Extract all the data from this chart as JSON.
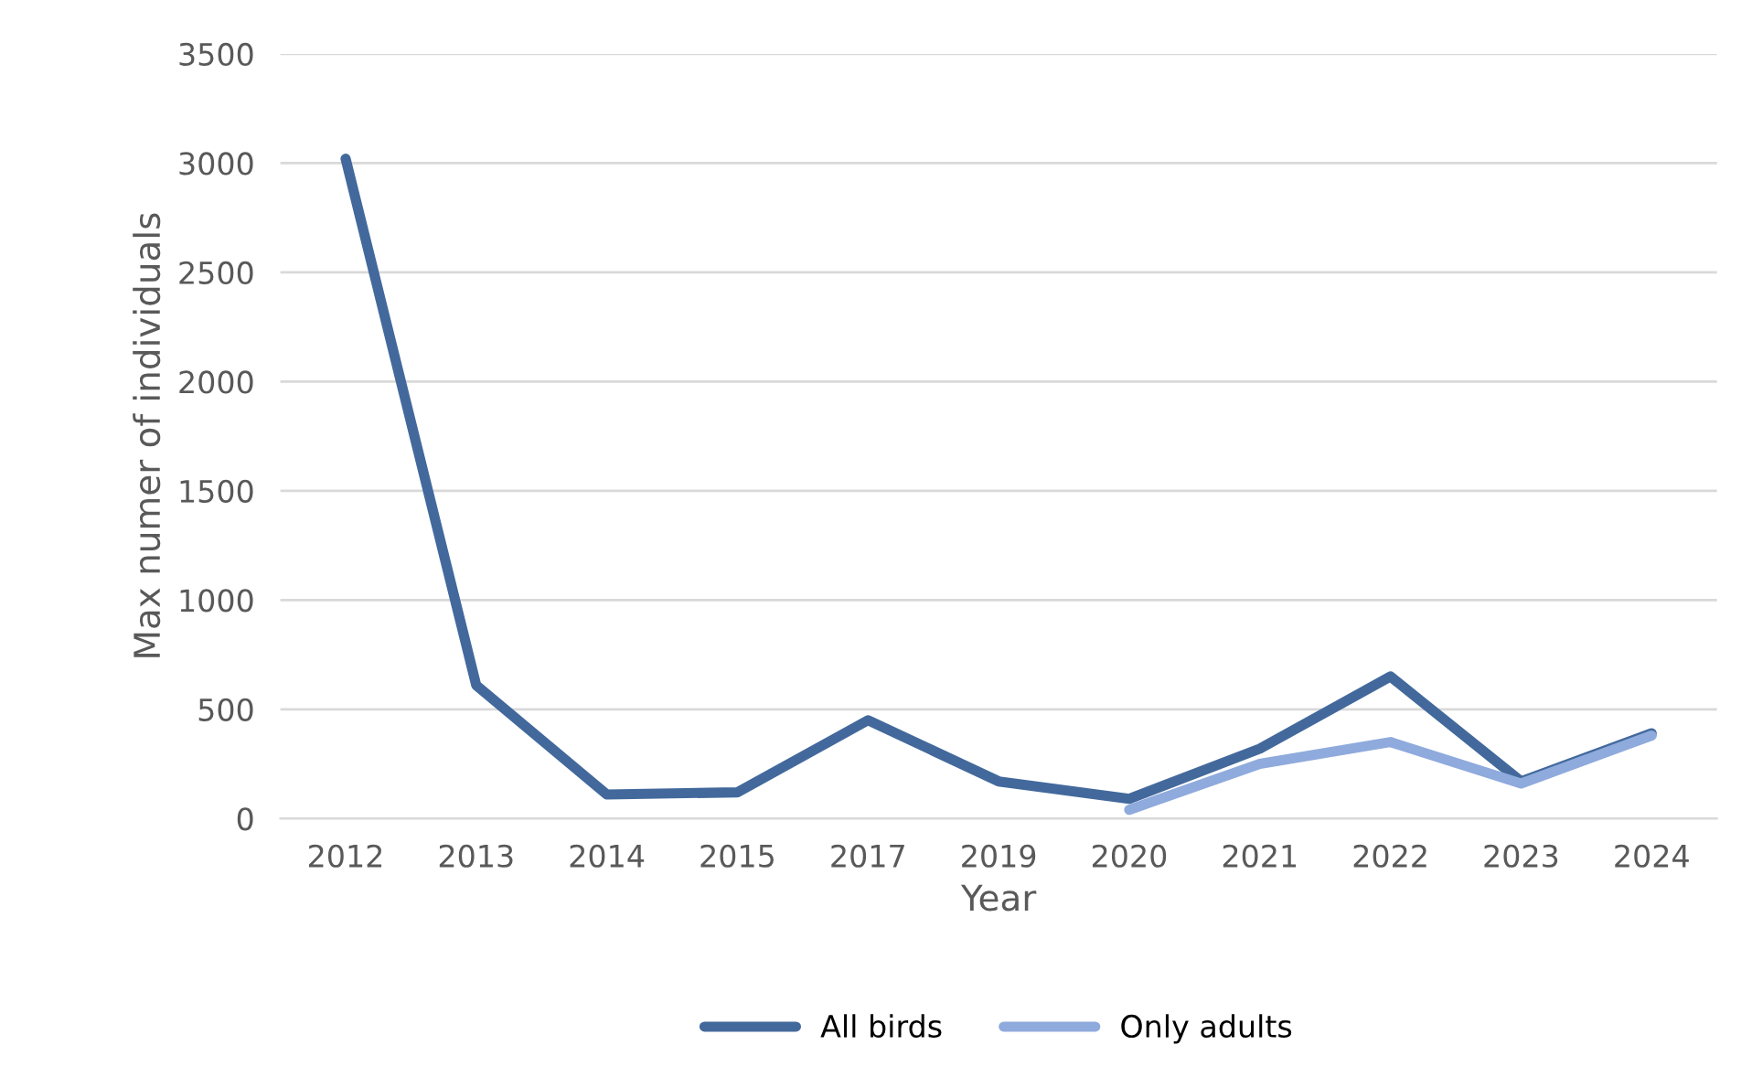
{
  "chart_data": {
    "type": "line",
    "xlabel": "Year",
    "ylabel": "Max numer of individuals",
    "categories": [
      "2012",
      "2013",
      "2014",
      "2015",
      "2017",
      "2019",
      "2020",
      "2021",
      "2022",
      "2023",
      "2024"
    ],
    "series": [
      {
        "name": "All birds",
        "color": "#43699c",
        "values": [
          3020,
          610,
          110,
          120,
          450,
          170,
          90,
          320,
          650,
          170,
          390
        ]
      },
      {
        "name": "Only adults",
        "color": "#8faadc",
        "values": [
          null,
          null,
          null,
          null,
          null,
          null,
          40,
          250,
          350,
          160,
          380
        ]
      }
    ],
    "ylim": [
      0,
      3500
    ],
    "yticks": [
      0,
      500,
      1000,
      1500,
      2000,
      2500,
      3000,
      3500
    ],
    "grid": "y",
    "legend": "bottom",
    "marker": "none",
    "line_style": "solid"
  }
}
